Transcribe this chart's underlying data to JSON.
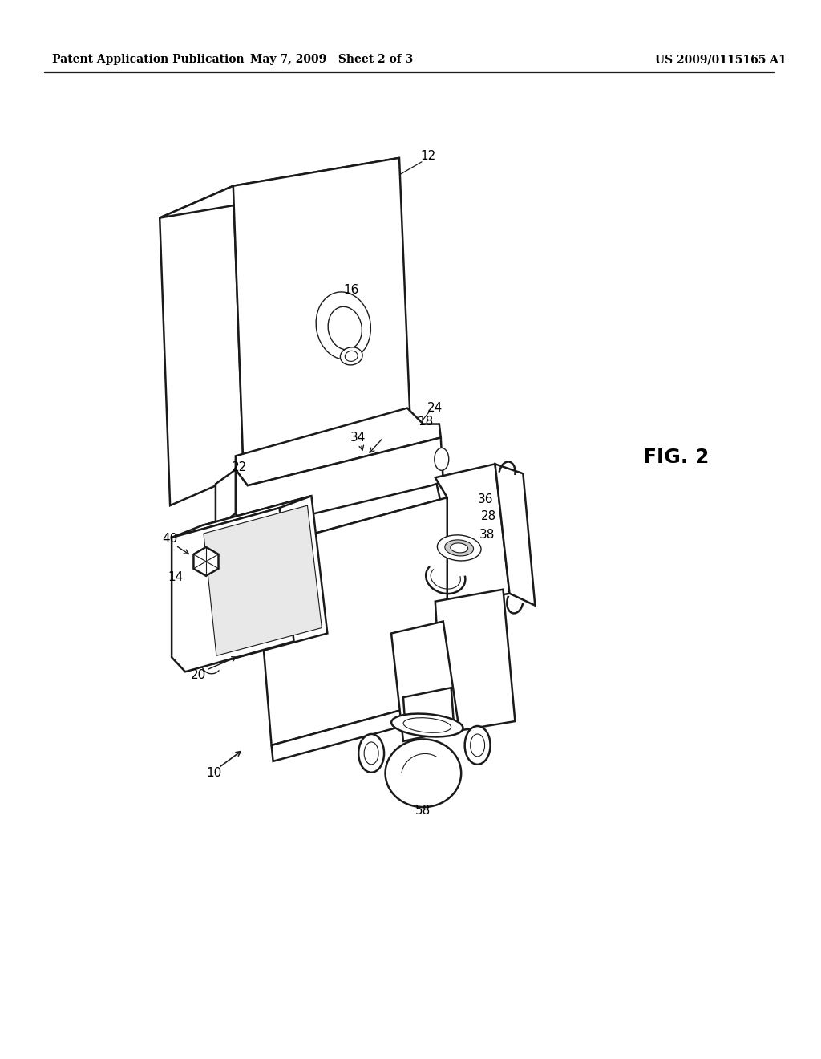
{
  "header_left": "Patent Application Publication",
  "header_mid": "May 7, 2009   Sheet 2 of 3",
  "header_right": "US 2009/0115165 A1",
  "fig_label": "FIG. 2",
  "background_color": "#ffffff",
  "line_color": "#1a1a1a",
  "lw_main": 1.8,
  "lw_thin": 1.0,
  "lw_detail": 0.8,
  "label_fontsize": 11,
  "header_fontsize": 10,
  "fig_fontsize": 18
}
